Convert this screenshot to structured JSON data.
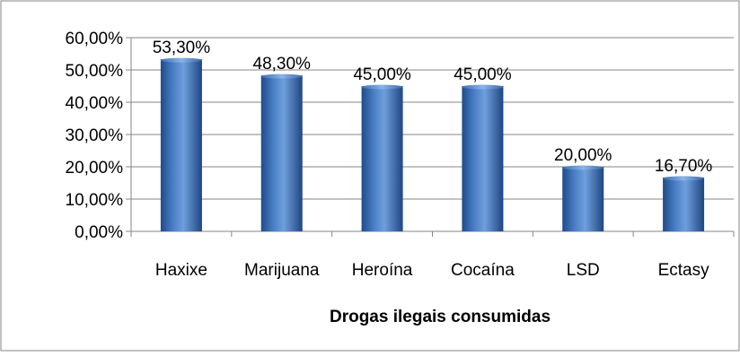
{
  "chart_data": {
    "type": "bar",
    "categories": [
      "Haxixe",
      "Marijuana",
      "Heroína",
      "Cocaína",
      "LSD",
      "Ectasy"
    ],
    "values": [
      53.3,
      48.3,
      45.0,
      45.0,
      20.0,
      16.7
    ],
    "data_labels": [
      "53,30%",
      "48,30%",
      "45,00%",
      "45,00%",
      "20,00%",
      "16,70%"
    ],
    "title": "",
    "xlabel": "Drogas ilegais consumidas",
    "ylabel": "",
    "ylim": [
      0,
      60
    ],
    "y_ticks": [
      0,
      10,
      20,
      30,
      40,
      50,
      60
    ],
    "y_tick_labels": [
      "0,00%",
      "10,00%",
      "20,00%",
      "30,00%",
      "40,00%",
      "50,00%",
      "60,00%"
    ],
    "grid": true,
    "legend": "none",
    "bar_color": "#4f81bd"
  }
}
